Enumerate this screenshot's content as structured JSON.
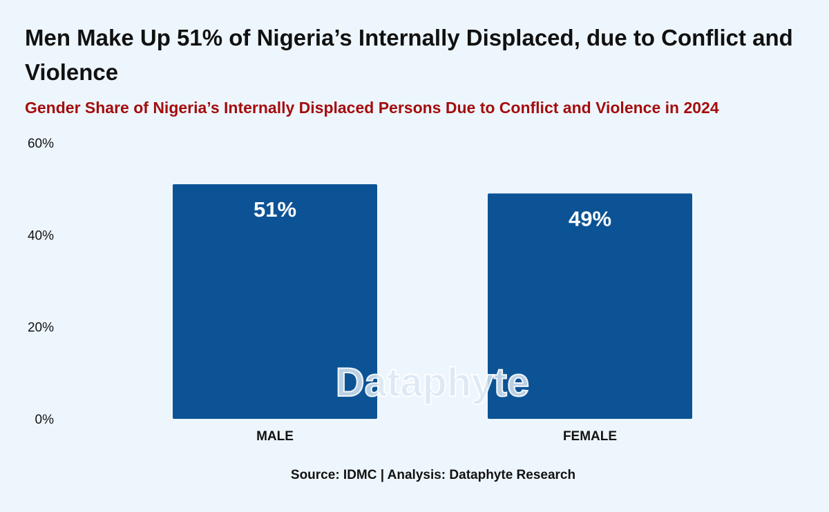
{
  "chart_data": {
    "type": "bar",
    "title": "Men Make Up 51% of Nigeria’s Internally Displaced, due to Conflict and Violence",
    "subtitle": "Gender Share of Nigeria’s Internally Displaced Persons Due to Conflict and Violence in 2024",
    "categories": [
      "MALE",
      "FEMALE"
    ],
    "values": [
      51,
      49
    ],
    "data_labels": [
      "51%",
      "49%"
    ],
    "y_ticks": [
      "0%",
      "20%",
      "40%",
      "60%"
    ],
    "ylim": [
      0,
      60
    ],
    "bar_color": "#0c5395",
    "grid": false,
    "legend": "none"
  },
  "watermark": "Dataphyte",
  "source": "Source: IDMC | Analysis: Dataphyte Research"
}
